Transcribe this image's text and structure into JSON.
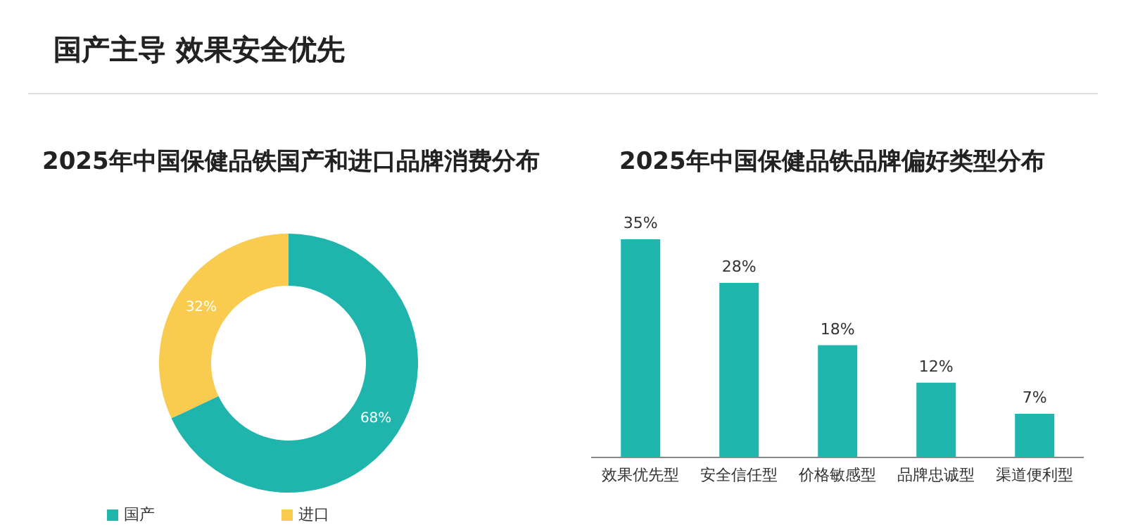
{
  "chart_data": [
    {
      "type": "donut",
      "title": "2025年中国保健品铁国产和进口品牌消费分布",
      "annotations": [
        "国产主导 效果安全优先"
      ],
      "categories": [
        "国产",
        "进口"
      ],
      "values": [
        68,
        32
      ],
      "value_labels": [
        "68%",
        "32%"
      ],
      "colors": [
        "#1fb5ad",
        "#f9cb4f"
      ],
      "legend": "bottom"
    },
    {
      "type": "bar",
      "title": "2025年中国保健品铁品牌偏好类型分布",
      "categories": [
        "效果优先型",
        "安全信任型",
        "价格敏感型",
        "品牌忠诚型",
        "渠道便利型"
      ],
      "values": [
        35,
        28,
        18,
        12,
        7
      ],
      "value_labels": [
        "35%",
        "28%",
        "18%",
        "12%",
        "7%"
      ],
      "color": "#1fb5ad",
      "grid": false
    }
  ]
}
